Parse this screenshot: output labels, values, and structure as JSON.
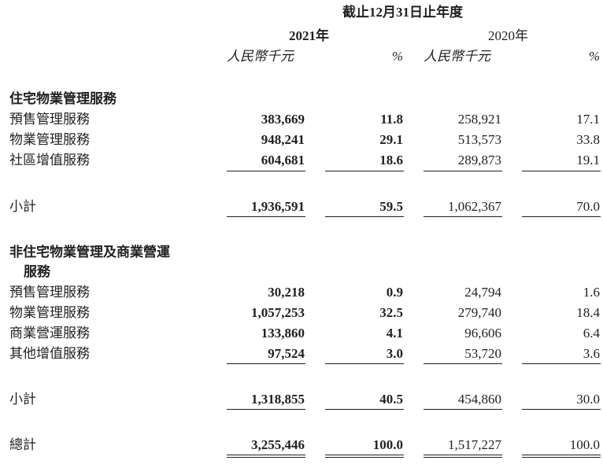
{
  "header": {
    "period": "截止12月31日止年度",
    "year_2021": "2021年",
    "year_2020": "2020年",
    "unit": "人民幣千元",
    "pct": "%"
  },
  "sections": [
    {
      "title": "住宅物業管理服務",
      "title_line2": "",
      "rows": [
        {
          "label": "預售管理服務",
          "v2021": "383,669",
          "p2021": "11.8",
          "v2020": "258,921",
          "p2020": "17.1"
        },
        {
          "label": "物業管理服務",
          "v2021": "948,241",
          "p2021": "29.1",
          "v2020": "513,573",
          "p2020": "33.8"
        },
        {
          "label": "社區增值服務",
          "v2021": "604,681",
          "p2021": "18.6",
          "v2020": "289,873",
          "p2020": "19.1"
        }
      ],
      "subtotal": {
        "label": "小計",
        "v2021": "1,936,591",
        "p2021": "59.5",
        "v2020": "1,062,367",
        "p2020": "70.0"
      }
    },
    {
      "title": "非住宅物業管理及商業營運",
      "title_line2": "服務",
      "rows": [
        {
          "label": "預售管理服務",
          "v2021": "30,218",
          "p2021": "0.9",
          "v2020": "24,794",
          "p2020": "1.6"
        },
        {
          "label": "物業管理服務",
          "v2021": "1,057,253",
          "p2021": "32.5",
          "v2020": "279,740",
          "p2020": "18.4"
        },
        {
          "label": "商業營運服務",
          "v2021": "133,860",
          "p2021": "4.1",
          "v2020": "96,606",
          "p2020": "6.4"
        },
        {
          "label": "其他增值服務",
          "v2021": "97,524",
          "p2021": "3.0",
          "v2020": "53,720",
          "p2020": "3.6"
        }
      ],
      "subtotal": {
        "label": "小計",
        "v2021": "1,318,855",
        "p2021": "40.5",
        "v2020": "454,860",
        "p2020": "30.0"
      }
    }
  ],
  "total": {
    "label": "總計",
    "v2021": "3,255,446",
    "p2021": "100.0",
    "v2020": "1,517,227",
    "p2020": "100.0"
  }
}
